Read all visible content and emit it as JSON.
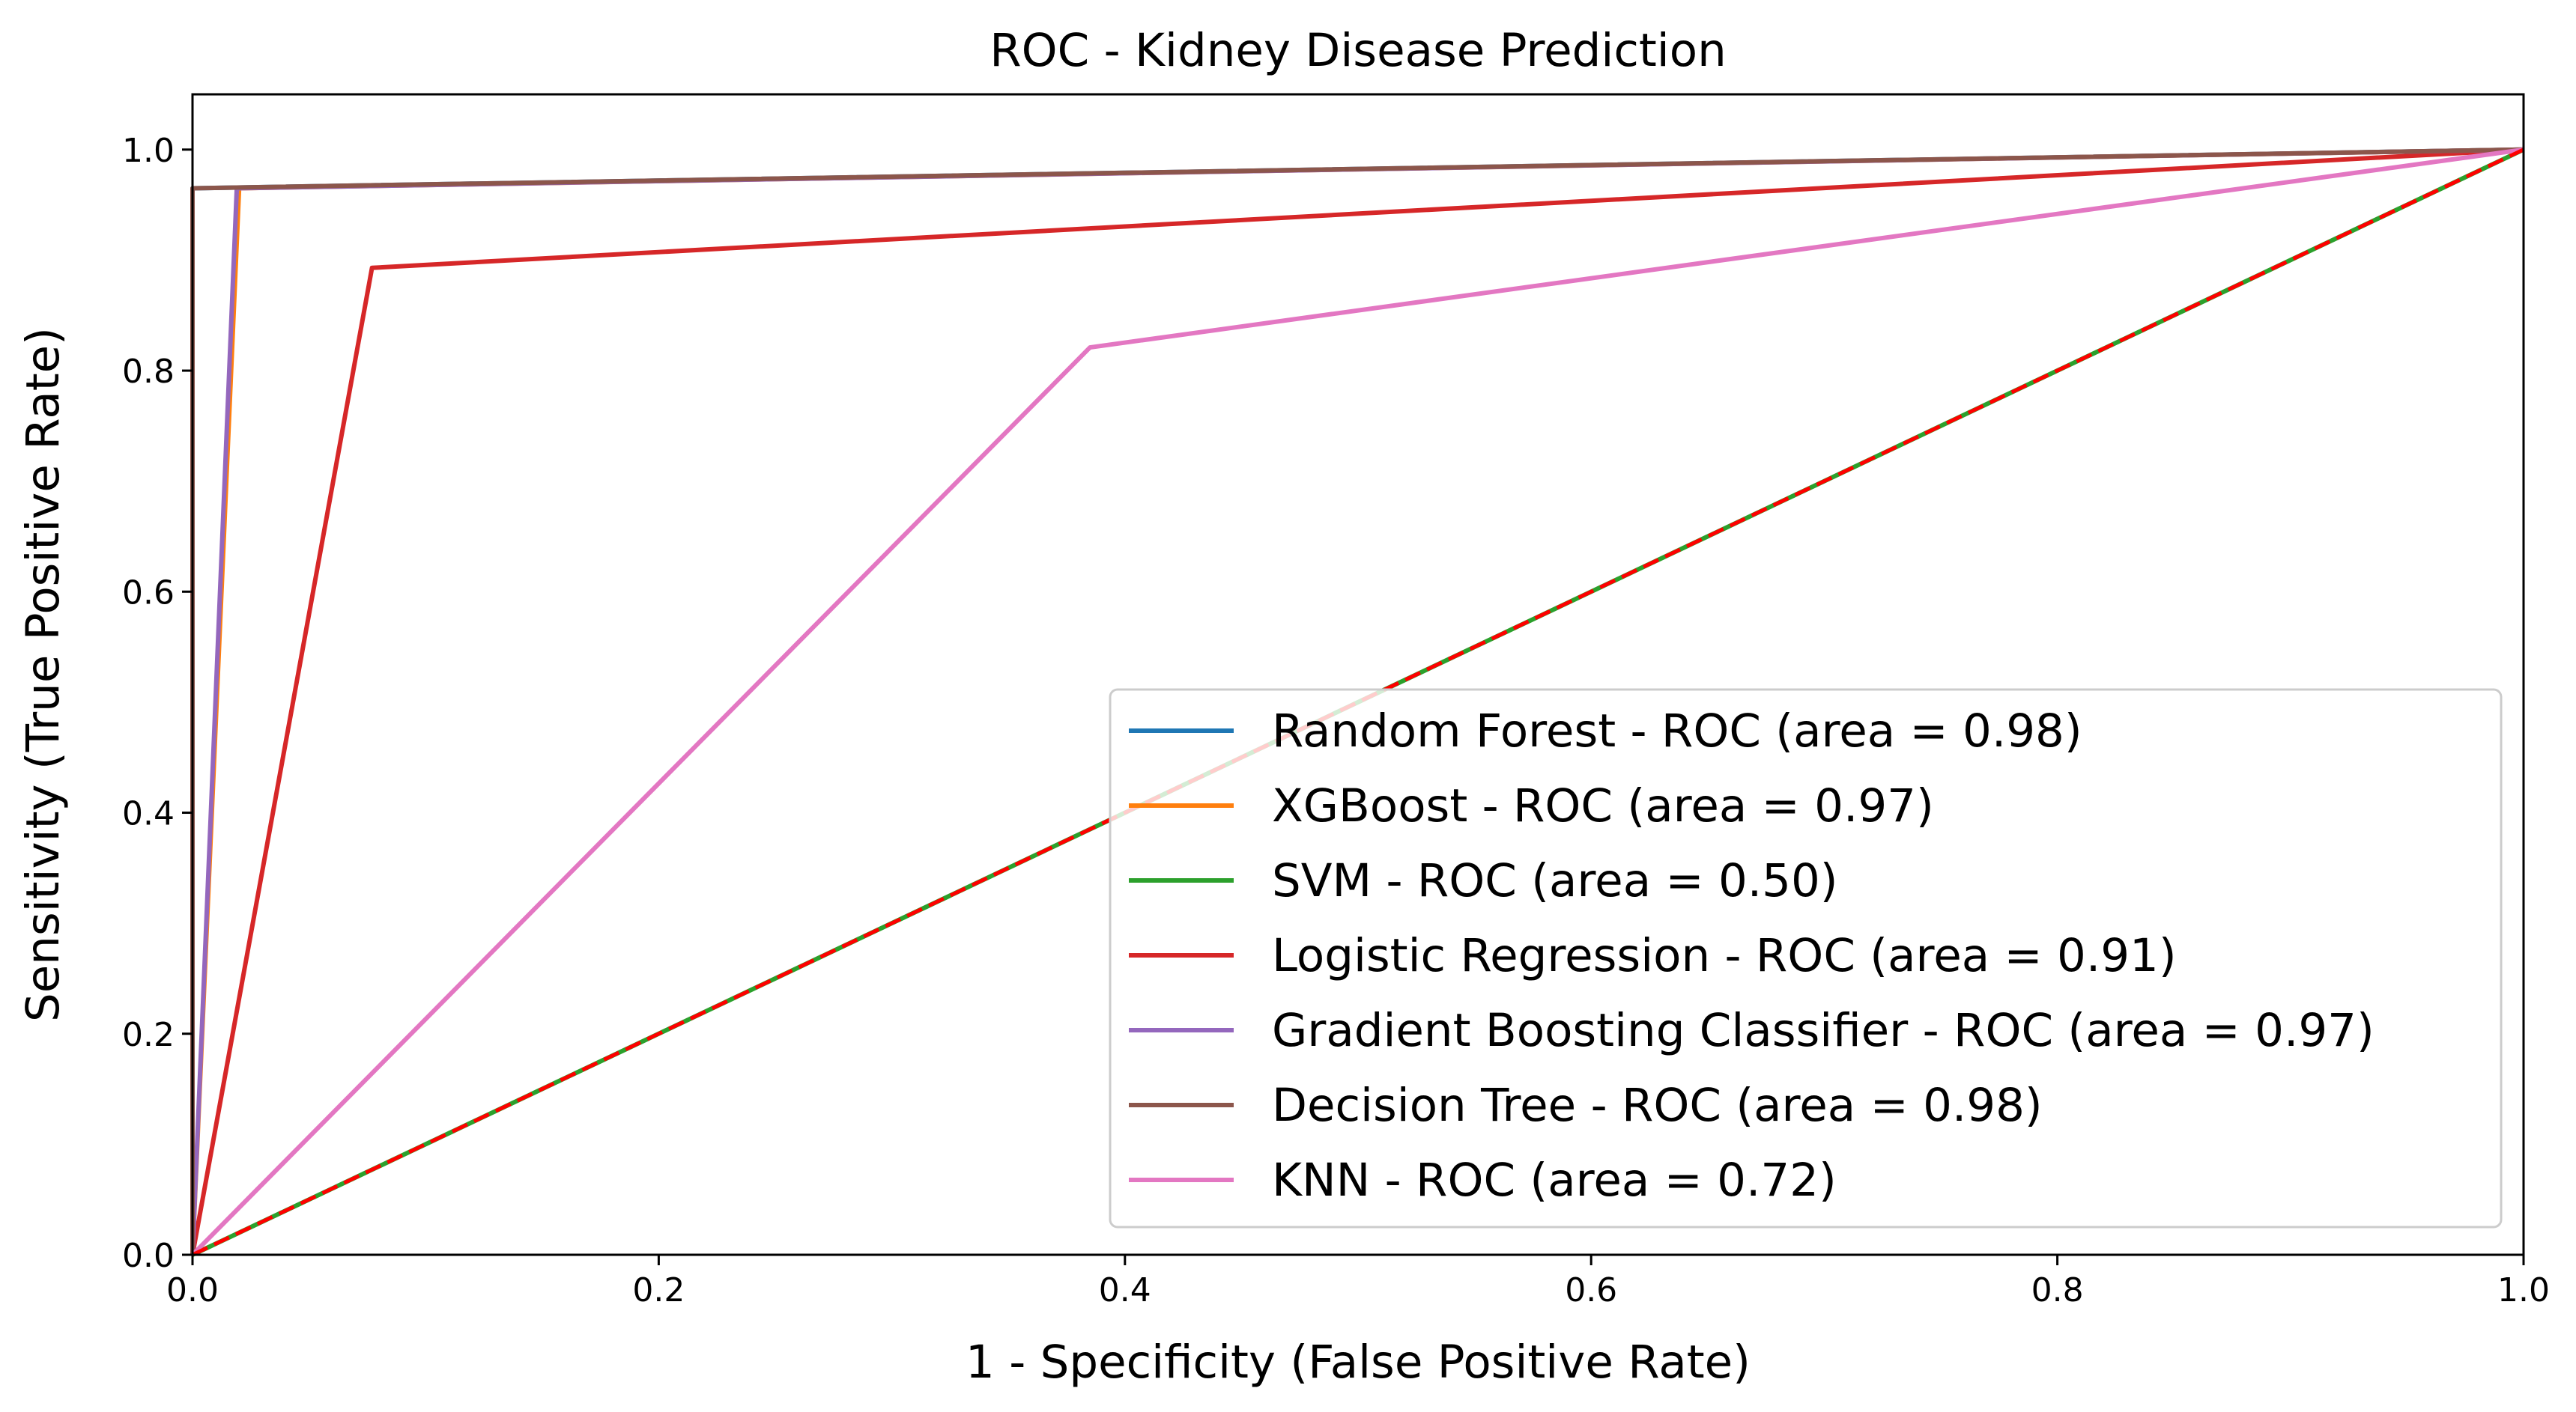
{
  "chart_data": {
    "type": "line",
    "title": "ROC - Kidney Disease Prediction",
    "xlabel": "1 - Specificity (False Positive Rate)",
    "ylabel": "Sensitivity (True Positive Rate)",
    "xlim": [
      0.0,
      1.0
    ],
    "ylim": [
      0.0,
      1.05
    ],
    "xticks": [
      "0.0",
      "0.2",
      "0.4",
      "0.6",
      "0.8",
      "1.0"
    ],
    "yticks": [
      "0.0",
      "0.2",
      "0.4",
      "0.6",
      "0.8",
      "1.0"
    ],
    "grid": false,
    "legend_position": "lower-right",
    "series": [
      {
        "name": "Random Forest - ROC (area = 0.98)",
        "color": "#1f77b4",
        "x": [
          0,
          0,
          1
        ],
        "y": [
          0,
          0.965,
          1
        ]
      },
      {
        "name": "XGBoost - ROC (area = 0.97)",
        "color": "#ff7f0e",
        "x": [
          0,
          0.02,
          1
        ],
        "y": [
          0,
          0.965,
          1
        ]
      },
      {
        "name": "SVM - ROC (area = 0.50)",
        "color": "#2ca02c",
        "x": [
          0,
          1
        ],
        "y": [
          0,
          1
        ]
      },
      {
        "name": "Logistic Regression - ROC (area = 0.91)",
        "color": "#d62728",
        "x": [
          0,
          0.077,
          1
        ],
        "y": [
          0,
          0.893,
          1
        ]
      },
      {
        "name": "Gradient Boosting Classifier - ROC (area = 0.97)",
        "color": "#9467bd",
        "x": [
          0,
          0.019,
          1
        ],
        "y": [
          0,
          0.965,
          1
        ]
      },
      {
        "name": "Decision Tree - ROC (area = 0.98)",
        "color": "#8c564b",
        "x": [
          0,
          0,
          1
        ],
        "y": [
          0,
          0.965,
          1
        ]
      },
      {
        "name": "KNN - ROC (area = 0.72)",
        "color": "#e377c2",
        "x": [
          0,
          0.385,
          1
        ],
        "y": [
          0,
          0.821,
          1
        ]
      }
    ],
    "reference_line": {
      "color": "#ff0000",
      "x": [
        0,
        1
      ],
      "y": [
        0,
        1
      ]
    }
  }
}
